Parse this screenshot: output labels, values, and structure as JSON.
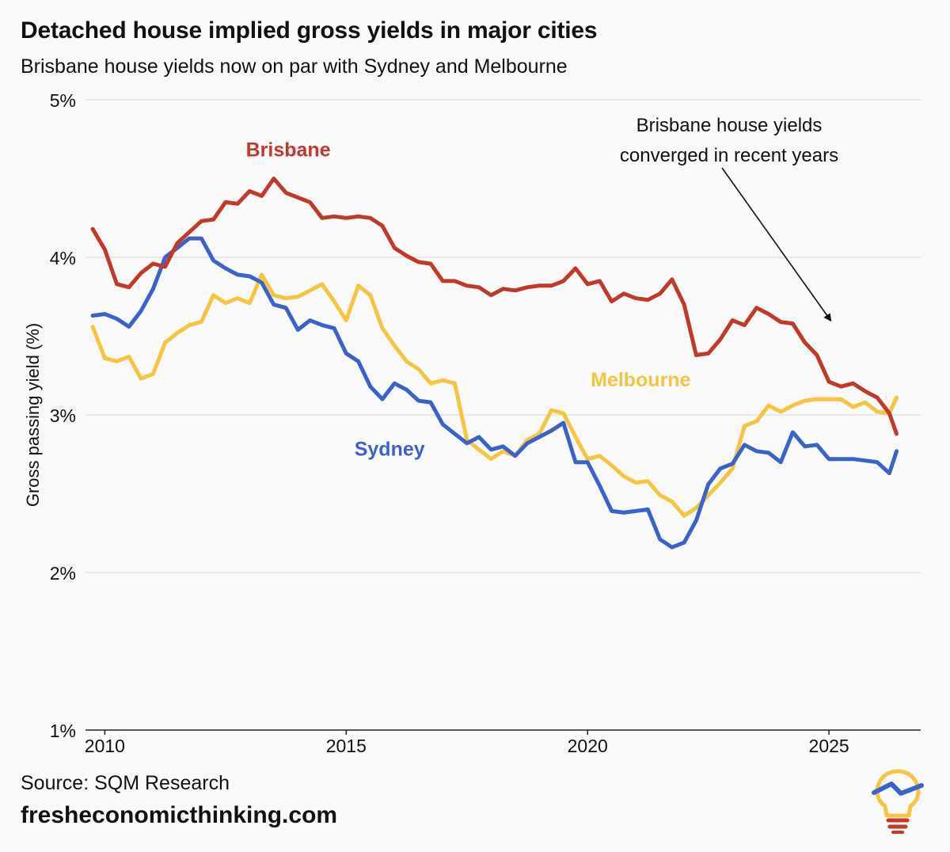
{
  "header": {
    "title": "Detached house implied gross yields in major cities",
    "subtitle": "Brisbane house yields now on par with Sydney and Melbourne"
  },
  "footer": {
    "source": "Source: SQM Research",
    "site": "fresheconomicthinking.com"
  },
  "colors": {
    "brisbane": "#c0392b",
    "sydney": "#3a62c8",
    "melbourne": "#f5c542",
    "grid": "#dddddd",
    "text": "#111111"
  },
  "chart_data": {
    "type": "line",
    "title": "Detached house implied gross yields in major cities",
    "subtitle": "Brisbane house yields now on par with Sydney and Melbourne",
    "ylabel": "Gross passing yield (%)",
    "xlabel": "",
    "ylim": [
      1,
      5
    ],
    "xlim": [
      2009.6,
      2026.9
    ],
    "xticks": [
      2010,
      2015,
      2020,
      2025
    ],
    "yticks": [
      1,
      2,
      3,
      4,
      5
    ],
    "ytick_labels": [
      "1%",
      "2%",
      "3%",
      "4%",
      "5%"
    ],
    "grid": "horizontal",
    "legend": "inline labels",
    "annotation": {
      "text": [
        "Brisbane house yields",
        "converged in recent years"
      ],
      "points_to": {
        "x": 2025.0,
        "y": 3.6
      }
    },
    "series": [
      {
        "name": "Brisbane",
        "label_at": {
          "x": 2013.8,
          "y": 4.64
        },
        "x": [
          2009.75,
          2010.0,
          2010.25,
          2010.5,
          2010.75,
          2011.0,
          2011.25,
          2011.5,
          2011.75,
          2012.0,
          2012.25,
          2012.5,
          2012.75,
          2013.0,
          2013.25,
          2013.5,
          2013.75,
          2014.0,
          2014.25,
          2014.5,
          2014.75,
          2015.0,
          2015.25,
          2015.5,
          2015.75,
          2016.0,
          2016.25,
          2016.5,
          2016.75,
          2017.0,
          2017.25,
          2017.5,
          2017.75,
          2018.0,
          2018.25,
          2018.5,
          2018.75,
          2019.0,
          2019.25,
          2019.5,
          2019.75,
          2020.0,
          2020.25,
          2020.5,
          2020.75,
          2021.0,
          2021.25,
          2021.5,
          2021.75,
          2022.0,
          2022.25,
          2022.5,
          2022.75,
          2023.0,
          2023.25,
          2023.5,
          2023.75,
          2024.0,
          2024.25,
          2024.5,
          2024.75,
          2025.0,
          2025.25,
          2025.5,
          2025.75,
          2026.0,
          2026.25,
          2026.4
        ],
        "values": [
          4.18,
          4.05,
          3.83,
          3.81,
          3.9,
          3.96,
          3.94,
          4.09,
          4.16,
          4.23,
          4.24,
          4.35,
          4.34,
          4.42,
          4.39,
          4.5,
          4.41,
          4.38,
          4.35,
          4.25,
          4.26,
          4.25,
          4.26,
          4.25,
          4.2,
          4.06,
          4.01,
          3.97,
          3.96,
          3.85,
          3.85,
          3.82,
          3.81,
          3.76,
          3.8,
          3.79,
          3.81,
          3.82,
          3.82,
          3.85,
          3.93,
          3.83,
          3.85,
          3.72,
          3.77,
          3.74,
          3.73,
          3.77,
          3.86,
          3.7,
          3.38,
          3.39,
          3.48,
          3.6,
          3.57,
          3.68,
          3.64,
          3.59,
          3.58,
          3.46,
          3.38,
          3.21,
          3.18,
          3.2,
          3.15,
          3.11,
          3.01,
          2.88
        ]
      },
      {
        "name": "Sydney",
        "label_at": {
          "x": 2015.9,
          "y": 2.74
        },
        "x": [
          2009.75,
          2010.0,
          2010.25,
          2010.5,
          2010.75,
          2011.0,
          2011.25,
          2011.5,
          2011.75,
          2012.0,
          2012.25,
          2012.5,
          2012.75,
          2013.0,
          2013.25,
          2013.5,
          2013.75,
          2014.0,
          2014.25,
          2014.5,
          2014.75,
          2015.0,
          2015.25,
          2015.5,
          2015.75,
          2016.0,
          2016.25,
          2016.5,
          2016.75,
          2017.0,
          2017.25,
          2017.5,
          2017.75,
          2018.0,
          2018.25,
          2018.5,
          2018.75,
          2019.0,
          2019.25,
          2019.5,
          2019.75,
          2020.0,
          2020.25,
          2020.5,
          2020.75,
          2021.0,
          2021.25,
          2021.5,
          2021.75,
          2022.0,
          2022.25,
          2022.5,
          2022.75,
          2023.0,
          2023.25,
          2023.5,
          2023.75,
          2024.0,
          2024.25,
          2024.5,
          2024.75,
          2025.0,
          2025.25,
          2025.5,
          2025.75,
          2026.0,
          2026.25,
          2026.4
        ],
        "values": [
          3.63,
          3.64,
          3.61,
          3.56,
          3.66,
          3.8,
          4.0,
          4.06,
          4.12,
          4.12,
          3.98,
          3.93,
          3.89,
          3.88,
          3.84,
          3.7,
          3.68,
          3.54,
          3.6,
          3.57,
          3.55,
          3.39,
          3.34,
          3.18,
          3.1,
          3.2,
          3.16,
          3.09,
          3.08,
          2.94,
          2.88,
          2.82,
          2.86,
          2.78,
          2.8,
          2.74,
          2.82,
          2.86,
          2.9,
          2.95,
          2.7,
          2.7,
          2.55,
          2.39,
          2.38,
          2.39,
          2.4,
          2.21,
          2.16,
          2.19,
          2.33,
          2.56,
          2.66,
          2.69,
          2.81,
          2.77,
          2.76,
          2.7,
          2.89,
          2.8,
          2.81,
          2.72,
          2.72,
          2.72,
          2.71,
          2.7,
          2.63,
          2.77
        ]
      },
      {
        "name": "Melbourne",
        "label_at": {
          "x": 2021.1,
          "y": 3.18
        },
        "x": [
          2009.75,
          2010.0,
          2010.25,
          2010.5,
          2010.75,
          2011.0,
          2011.25,
          2011.5,
          2011.75,
          2012.0,
          2012.25,
          2012.5,
          2012.75,
          2013.0,
          2013.25,
          2013.5,
          2013.75,
          2014.0,
          2014.25,
          2014.5,
          2014.75,
          2015.0,
          2015.25,
          2015.5,
          2015.75,
          2016.0,
          2016.25,
          2016.5,
          2016.75,
          2017.0,
          2017.25,
          2017.5,
          2017.75,
          2018.0,
          2018.25,
          2018.5,
          2018.75,
          2019.0,
          2019.25,
          2019.5,
          2019.75,
          2020.0,
          2020.25,
          2020.5,
          2020.75,
          2021.0,
          2021.25,
          2021.5,
          2021.75,
          2022.0,
          2022.25,
          2022.5,
          2022.75,
          2023.0,
          2023.25,
          2023.5,
          2023.75,
          2024.0,
          2024.25,
          2024.5,
          2024.75,
          2025.0,
          2025.25,
          2025.5,
          2025.75,
          2026.0,
          2026.25,
          2026.4
        ],
        "values": [
          3.56,
          3.36,
          3.34,
          3.37,
          3.23,
          3.26,
          3.46,
          3.52,
          3.57,
          3.59,
          3.76,
          3.71,
          3.74,
          3.71,
          3.89,
          3.76,
          3.74,
          3.75,
          3.79,
          3.83,
          3.72,
          3.6,
          3.82,
          3.76,
          3.55,
          3.44,
          3.34,
          3.29,
          3.2,
          3.22,
          3.2,
          2.84,
          2.78,
          2.72,
          2.77,
          2.74,
          2.84,
          2.88,
          3.03,
          3.01,
          2.86,
          2.72,
          2.74,
          2.68,
          2.61,
          2.57,
          2.58,
          2.49,
          2.45,
          2.36,
          2.41,
          2.49,
          2.57,
          2.66,
          2.93,
          2.96,
          3.06,
          3.02,
          3.06,
          3.09,
          3.1,
          3.1,
          3.1,
          3.05,
          3.08,
          3.02,
          3.01,
          3.11
        ]
      }
    ]
  }
}
